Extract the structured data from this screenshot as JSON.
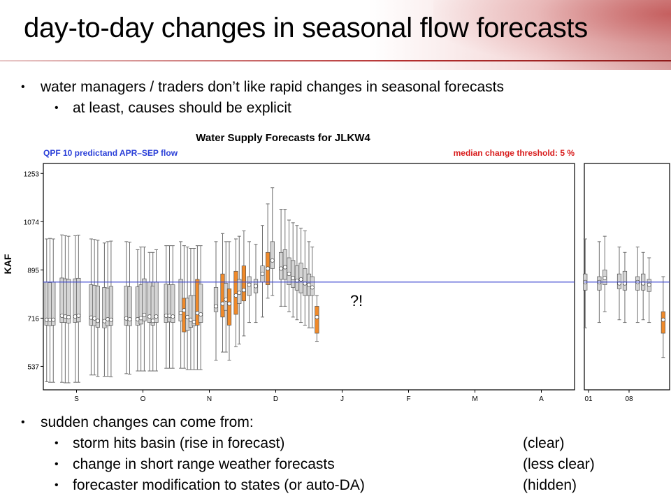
{
  "slide": {
    "title": "day-to-day changes in seasonal flow forecasts",
    "top_bullets": [
      {
        "level": 1,
        "text": "water managers / traders don’t like rapid changes in seasonal forecasts"
      },
      {
        "level": 2,
        "text": "at least, causes should be explicit"
      }
    ],
    "bottom_bullets": [
      {
        "level": 1,
        "text": "sudden changes can come from:",
        "note": ""
      },
      {
        "level": 2,
        "text": "storm hits basin (rise in forecast)",
        "note": "(clear)"
      },
      {
        "level": 2,
        "text": "change in short range weather forecasts",
        "note": "(less clear)"
      },
      {
        "level": 2,
        "text": "forecaster modification to states (or auto-DA)",
        "note": "(hidden)"
      }
    ]
  },
  "colors": {
    "median_line": "#3f49d0",
    "normal_box": "#d4d4d4",
    "changed_box": "#f08a2a",
    "subtitle_left": "#2a3fd8",
    "subtitle_right": "#d81b1b"
  },
  "chart_data": {
    "type": "boxplot",
    "title": "Water Supply Forecasts for JLKW4",
    "subtitle_left": "QPF 10 predictand APR–SEP flow",
    "subtitle_right": "median change threshold: 5 %",
    "ylabel": "KAF",
    "yticks": [
      537,
      716,
      895,
      1074,
      1253
    ],
    "ylim": [
      450,
      1290
    ],
    "reference_line": 850,
    "annotation": "?!",
    "panels": [
      {
        "name": "main",
        "x_tick_labels": [
          "S",
          "O",
          "N",
          "D",
          "J",
          "F",
          "M",
          "A"
        ],
        "x_range": [
          0,
          8
        ],
        "series": [
          {
            "x": 0.05,
            "min": 480,
            "q1": 690,
            "med": 710,
            "q3": 850,
            "max": 1010,
            "changed": false
          },
          {
            "x": 0.1,
            "min": 478,
            "q1": 688,
            "med": 710,
            "q3": 848,
            "max": 1012,
            "changed": false
          },
          {
            "x": 0.15,
            "min": 478,
            "q1": 690,
            "med": 710,
            "q3": 850,
            "max": 1010,
            "changed": false
          },
          {
            "x": 0.28,
            "min": 478,
            "q1": 700,
            "med": 725,
            "q3": 865,
            "max": 1025,
            "changed": false
          },
          {
            "x": 0.33,
            "min": 476,
            "q1": 700,
            "med": 722,
            "q3": 862,
            "max": 1022,
            "changed": false
          },
          {
            "x": 0.38,
            "min": 476,
            "q1": 698,
            "med": 720,
            "q3": 860,
            "max": 1020,
            "changed": false
          },
          {
            "x": 0.48,
            "min": 478,
            "q1": 700,
            "med": 722,
            "q3": 862,
            "max": 1022,
            "changed": false
          },
          {
            "x": 0.53,
            "min": 478,
            "q1": 702,
            "med": 725,
            "q3": 864,
            "max": 1024,
            "changed": false
          },
          {
            "x": 0.72,
            "min": 505,
            "q1": 690,
            "med": 718,
            "q3": 840,
            "max": 1010,
            "changed": false
          },
          {
            "x": 0.77,
            "min": 505,
            "q1": 688,
            "med": 715,
            "q3": 838,
            "max": 1008,
            "changed": false
          },
          {
            "x": 0.82,
            "min": 500,
            "q1": 682,
            "med": 706,
            "q3": 835,
            "max": 1005,
            "changed": false
          },
          {
            "x": 0.92,
            "min": 500,
            "q1": 680,
            "med": 705,
            "q3": 830,
            "max": 995,
            "changed": false
          },
          {
            "x": 0.97,
            "min": 500,
            "q1": 688,
            "med": 712,
            "q3": 828,
            "max": 1000,
            "changed": false
          },
          {
            "x": 1.02,
            "min": 498,
            "q1": 690,
            "med": 710,
            "q3": 834,
            "max": 1002,
            "changed": false
          },
          {
            "x": 1.25,
            "min": 510,
            "q1": 690,
            "med": 715,
            "q3": 835,
            "max": 1000,
            "changed": false
          },
          {
            "x": 1.3,
            "min": 508,
            "q1": 688,
            "med": 712,
            "q3": 832,
            "max": 998,
            "changed": false
          },
          {
            "x": 1.42,
            "min": 520,
            "q1": 690,
            "med": 712,
            "q3": 832,
            "max": 970,
            "changed": false
          },
          {
            "x": 1.47,
            "min": 520,
            "q1": 694,
            "med": 716,
            "q3": 840,
            "max": 980,
            "changed": false
          },
          {
            "x": 1.52,
            "min": 520,
            "q1": 705,
            "med": 728,
            "q3": 862,
            "max": 980,
            "changed": false
          },
          {
            "x": 1.6,
            "min": 520,
            "q1": 700,
            "med": 722,
            "q3": 850,
            "max": 960,
            "changed": false
          },
          {
            "x": 1.65,
            "min": 520,
            "q1": 690,
            "med": 706,
            "q3": 835,
            "max": 960,
            "changed": false
          },
          {
            "x": 1.7,
            "min": 520,
            "q1": 700,
            "med": 722,
            "q3": 850,
            "max": 970,
            "changed": false
          },
          {
            "x": 1.85,
            "min": 530,
            "q1": 700,
            "med": 725,
            "q3": 842,
            "max": 985,
            "changed": false
          },
          {
            "x": 1.9,
            "min": 530,
            "q1": 702,
            "med": 725,
            "q3": 840,
            "max": 985,
            "changed": false
          },
          {
            "x": 1.95,
            "min": 530,
            "q1": 700,
            "med": 722,
            "q3": 840,
            "max": 985,
            "changed": false
          },
          {
            "x": 2.07,
            "min": 530,
            "q1": 705,
            "med": 735,
            "q3": 860,
            "max": 1000,
            "changed": false
          },
          {
            "x": 2.12,
            "min": 530,
            "q1": 665,
            "med": 745,
            "q3": 790,
            "max": 985,
            "changed": true
          },
          {
            "x": 2.17,
            "min": 525,
            "q1": 670,
            "med": 720,
            "q3": 790,
            "max": 980,
            "changed": false
          },
          {
            "x": 2.22,
            "min": 525,
            "q1": 682,
            "med": 710,
            "q3": 800,
            "max": 975,
            "changed": false
          },
          {
            "x": 2.27,
            "min": 525,
            "q1": 688,
            "med": 702,
            "q3": 800,
            "max": 975,
            "changed": false
          },
          {
            "x": 2.32,
            "min": 525,
            "q1": 690,
            "med": 735,
            "q3": 860,
            "max": 985,
            "changed": true
          },
          {
            "x": 2.37,
            "min": 525,
            "q1": 700,
            "med": 730,
            "q3": 842,
            "max": 985,
            "changed": false
          },
          {
            "x": 2.6,
            "min": 560,
            "q1": 740,
            "med": 760,
            "q3": 830,
            "max": 1000,
            "changed": false
          },
          {
            "x": 2.7,
            "min": 590,
            "q1": 720,
            "med": 770,
            "q3": 880,
            "max": 1030,
            "changed": true
          },
          {
            "x": 2.75,
            "min": 590,
            "q1": 745,
            "med": 785,
            "q3": 845,
            "max": 1000,
            "changed": false
          },
          {
            "x": 2.8,
            "min": 560,
            "q1": 690,
            "med": 770,
            "q3": 825,
            "max": 1000,
            "changed": true
          },
          {
            "x": 2.9,
            "min": 610,
            "q1": 730,
            "med": 800,
            "q3": 890,
            "max": 1010,
            "changed": true
          },
          {
            "x": 2.95,
            "min": 620,
            "q1": 770,
            "med": 810,
            "q3": 860,
            "max": 1020,
            "changed": false
          },
          {
            "x": 3.02,
            "min": 650,
            "q1": 780,
            "med": 820,
            "q3": 910,
            "max": 1040,
            "changed": true
          },
          {
            "x": 3.1,
            "min": 700,
            "q1": 800,
            "med": 840,
            "q3": 870,
            "max": 1000,
            "changed": false
          },
          {
            "x": 3.2,
            "min": 700,
            "q1": 810,
            "med": 835,
            "q3": 860,
            "max": 990,
            "changed": false
          },
          {
            "x": 3.3,
            "min": 720,
            "q1": 850,
            "med": 880,
            "q3": 910,
            "max": 1060,
            "changed": false
          },
          {
            "x": 3.38,
            "min": 790,
            "q1": 840,
            "med": 900,
            "q3": 960,
            "max": 1140,
            "changed": true
          },
          {
            "x": 3.45,
            "min": 800,
            "q1": 900,
            "med": 930,
            "q3": 1000,
            "max": 1200,
            "changed": false
          },
          {
            "x": 3.58,
            "min": 760,
            "q1": 860,
            "med": 900,
            "q3": 960,
            "max": 1120,
            "changed": false
          },
          {
            "x": 3.64,
            "min": 760,
            "q1": 860,
            "med": 905,
            "q3": 970,
            "max": 1120,
            "changed": false
          },
          {
            "x": 3.7,
            "min": 740,
            "q1": 840,
            "med": 880,
            "q3": 940,
            "max": 1080,
            "changed": false
          },
          {
            "x": 3.76,
            "min": 720,
            "q1": 830,
            "med": 865,
            "q3": 930,
            "max": 1070,
            "changed": false
          },
          {
            "x": 3.82,
            "min": 710,
            "q1": 820,
            "med": 855,
            "q3": 910,
            "max": 1060,
            "changed": false
          },
          {
            "x": 3.88,
            "min": 700,
            "q1": 810,
            "med": 860,
            "q3": 920,
            "max": 1050,
            "changed": false
          },
          {
            "x": 3.94,
            "min": 690,
            "q1": 800,
            "med": 845,
            "q3": 900,
            "max": 1040,
            "changed": false
          },
          {
            "x": 4.0,
            "min": 680,
            "q1": 800,
            "med": 840,
            "q3": 880,
            "max": 1000,
            "changed": false
          },
          {
            "x": 4.05,
            "min": 680,
            "q1": 800,
            "med": 830,
            "q3": 870,
            "max": 980,
            "changed": false
          },
          {
            "x": 4.12,
            "min": 630,
            "q1": 660,
            "med": 720,
            "q3": 760,
            "max": 800,
            "changed": true
          }
        ]
      },
      {
        "name": "inset",
        "x_tick_labels": [
          "01",
          "08"
        ],
        "x_range": [
          0,
          2
        ],
        "series": [
          {
            "x": 0.02,
            "min": 680,
            "q1": 820,
            "med": 850,
            "q3": 880,
            "max": 1010,
            "changed": false
          },
          {
            "x": 0.35,
            "min": 700,
            "q1": 820,
            "med": 850,
            "q3": 870,
            "max": 1000,
            "changed": false
          },
          {
            "x": 0.48,
            "min": 740,
            "q1": 840,
            "med": 865,
            "q3": 895,
            "max": 1020,
            "changed": false
          },
          {
            "x": 0.82,
            "min": 710,
            "q1": 825,
            "med": 845,
            "q3": 880,
            "max": 980,
            "changed": false
          },
          {
            "x": 0.95,
            "min": 700,
            "q1": 820,
            "med": 845,
            "q3": 890,
            "max": 960,
            "changed": false
          },
          {
            "x": 1.25,
            "min": 700,
            "q1": 820,
            "med": 850,
            "q3": 870,
            "max": 980,
            "changed": false
          },
          {
            "x": 1.38,
            "min": 710,
            "q1": 820,
            "med": 845,
            "q3": 880,
            "max": 960,
            "changed": false
          },
          {
            "x": 1.52,
            "min": 700,
            "q1": 815,
            "med": 840,
            "q3": 860,
            "max": 940,
            "changed": false
          },
          {
            "x": 1.85,
            "min": 570,
            "q1": 660,
            "med": 710,
            "q3": 740,
            "max": 870,
            "changed": true
          }
        ]
      }
    ]
  }
}
